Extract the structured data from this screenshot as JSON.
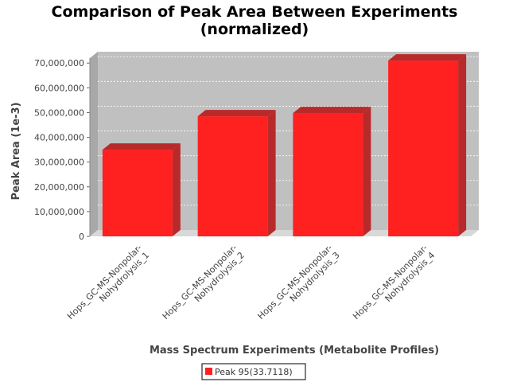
{
  "chart_data": {
    "type": "bar",
    "title": "Comparison of Peak Area Between Experiments",
    "subtitle": "(normalized)",
    "xlabel": "Mass Spectrum Experiments (Metabolite Profiles)",
    "ylabel": "Peak Area (1e-3)",
    "categories": [
      "Hops_GC-MS-Nonpolar-Nohydrolysis_1",
      "Hops_GC-MS-Nonpolar-Nohydrolysis_2",
      "Hops_GC-MS-Nonpolar-Nohydrolysis_3",
      "Hops_GC-MS-Nonpolar-Nohydrolysis_4"
    ],
    "category_lines": [
      [
        "Hops_GC-MS-Nonpolar-",
        "Nohydrolysis_1"
      ],
      [
        "Hops_GC-MS-Nonpolar-",
        "Nohydrolysis_2"
      ],
      [
        "Hops_GC-MS-Nonpolar-",
        "Nohydrolysis_3"
      ],
      [
        "Hops_GC-MS-Nonpolar-",
        "Nohydrolysis_4"
      ]
    ],
    "series": [
      {
        "name": "Peak 95(33.7118)",
        "color": "#ff2020",
        "values": [
          35000000,
          48500000,
          49800000,
          71000000
        ]
      }
    ],
    "ylim": [
      0,
      72000000
    ],
    "yticks": [
      0,
      10000000,
      20000000,
      30000000,
      40000000,
      50000000,
      60000000,
      70000000
    ],
    "ytick_labels": [
      "0",
      "10,000,000",
      "20,000,000",
      "30,000,000",
      "40,000,000",
      "50,000,000",
      "60,000,000",
      "70,000,000"
    ],
    "grid": true,
    "legend_position": "bottom-center",
    "colors": {
      "plot_background": "#c0c0c0",
      "plot_side": "#a8a8a8",
      "plot_floor": "#d8d8d8",
      "gridline": "#ffffff",
      "bar_front": "#ff2020",
      "bar_top": "#b82a2a",
      "bar_side": "#b82a2a"
    }
  }
}
